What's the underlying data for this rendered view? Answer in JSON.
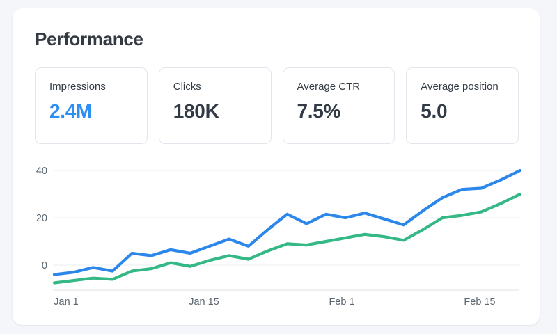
{
  "title": "Performance",
  "stats": [
    {
      "label": "Impressions",
      "value": "2.4M",
      "value_color": "#2e8ff2"
    },
    {
      "label": "Clicks",
      "value": "180K",
      "value_color": "#323a45"
    },
    {
      "label": "Average CTR",
      "value": "7.5%",
      "value_color": "#323a45"
    },
    {
      "label": "Average position",
      "value": "5.0",
      "value_color": "#323a45"
    }
  ],
  "chart_data": {
    "type": "line",
    "title": "",
    "xlabel": "",
    "ylabel": "",
    "x_labels": [
      "Jan 1",
      "Jan 15",
      "Feb 1",
      "Feb 15"
    ],
    "yticks": [
      0,
      20,
      40
    ],
    "ylim": [
      -10.5,
      44
    ],
    "grid": true,
    "legend": "none",
    "series": [
      {
        "name": "blue-line",
        "color": "#2b87ea",
        "values": [
          -4,
          -3,
          -1,
          -2.5,
          5,
          4,
          6.5,
          5,
          8,
          11,
          8,
          15,
          21.5,
          17.5,
          21.5,
          20,
          22,
          19.5,
          17,
          23,
          28.5,
          32,
          32.5,
          36,
          40
        ]
      },
      {
        "name": "green-line",
        "color": "#34b886",
        "values": [
          -7.5,
          -6.5,
          -5.5,
          -6,
          -2.5,
          -1.5,
          1,
          -0.5,
          2,
          4,
          2.5,
          6,
          9,
          8.5,
          10,
          11.5,
          13,
          12,
          10.5,
          15,
          20,
          21,
          22.5,
          26,
          30
        ]
      }
    ]
  },
  "colors": {
    "page_bg": "#f4f6f9",
    "card_bg": "#ffffff",
    "card_border": "#e2e6ec",
    "accent_blue": "#2e8ff2",
    "grid_line": "#e9ecef",
    "baseline": "#dde1e6",
    "axis_text": "#5b6670",
    "text_dark": "#323a45"
  }
}
